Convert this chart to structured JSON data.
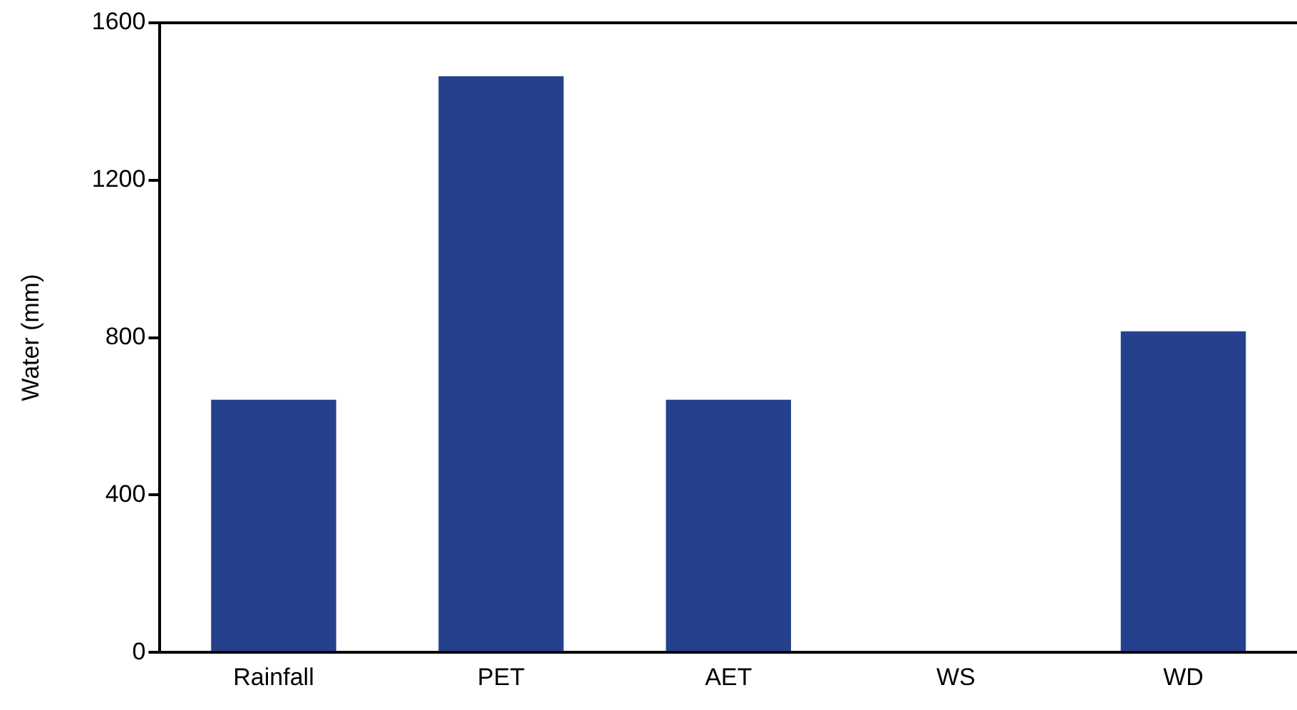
{
  "chart_data": {
    "type": "bar",
    "ylabel": "Water (mm)",
    "categories": [
      "Rainfall",
      "PET",
      "AET",
      "WS",
      "WD"
    ],
    "values": [
      642,
      1464,
      642,
      0,
      816
    ],
    "color": "#25418e",
    "ylim": [
      0,
      1600
    ],
    "yticks": [
      0,
      400,
      800,
      1200,
      1600
    ],
    "grid": false,
    "legend": false
  }
}
